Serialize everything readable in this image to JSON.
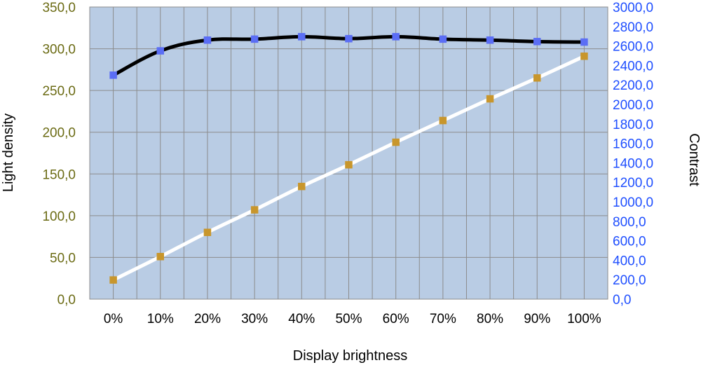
{
  "chart_data": {
    "type": "line",
    "title": "",
    "xlabel": "Display brightness",
    "ylabel_left": "Light density",
    "ylabel_right": "Contrast",
    "categories": [
      "0%",
      "10%",
      "20%",
      "30%",
      "40%",
      "50%",
      "60%",
      "70%",
      "80%",
      "90%",
      "100%"
    ],
    "y_left": {
      "min": 0,
      "max": 350,
      "step": 50,
      "tick_labels": [
        "0,0",
        "50,0",
        "100,0",
        "150,0",
        "200,0",
        "250,0",
        "300,0",
        "350,0"
      ]
    },
    "y_right": {
      "min": 0,
      "max": 3000,
      "step": 200,
      "tick_labels": [
        "0,0",
        "200,0",
        "400,0",
        "600,0",
        "800,0",
        "1000,0",
        "1200,0",
        "1400,0",
        "1600,0",
        "1800,0",
        "2000,0",
        "2200,0",
        "2400,0",
        "2600,0",
        "2800,0",
        "3000,0"
      ]
    },
    "grid": true,
    "legend": "none",
    "series": [
      {
        "axis": "left",
        "values": [
          23,
          51,
          80,
          107,
          135,
          161,
          188,
          214,
          240,
          265,
          291
        ],
        "line_color": "#ffffff",
        "marker_color": "#c8962c"
      },
      {
        "axis": "right",
        "values": [
          2300,
          2550,
          2660,
          2670,
          2695,
          2675,
          2695,
          2670,
          2660,
          2645,
          2640
        ],
        "line_color": "#000000",
        "marker_color": "#5b6ef5"
      }
    ],
    "colors": {
      "plot_background": "#b9cce4",
      "gridline": "#8c8c8c",
      "left_tick_text": "#6b6b14",
      "right_tick_text": "#1f4fff"
    }
  }
}
